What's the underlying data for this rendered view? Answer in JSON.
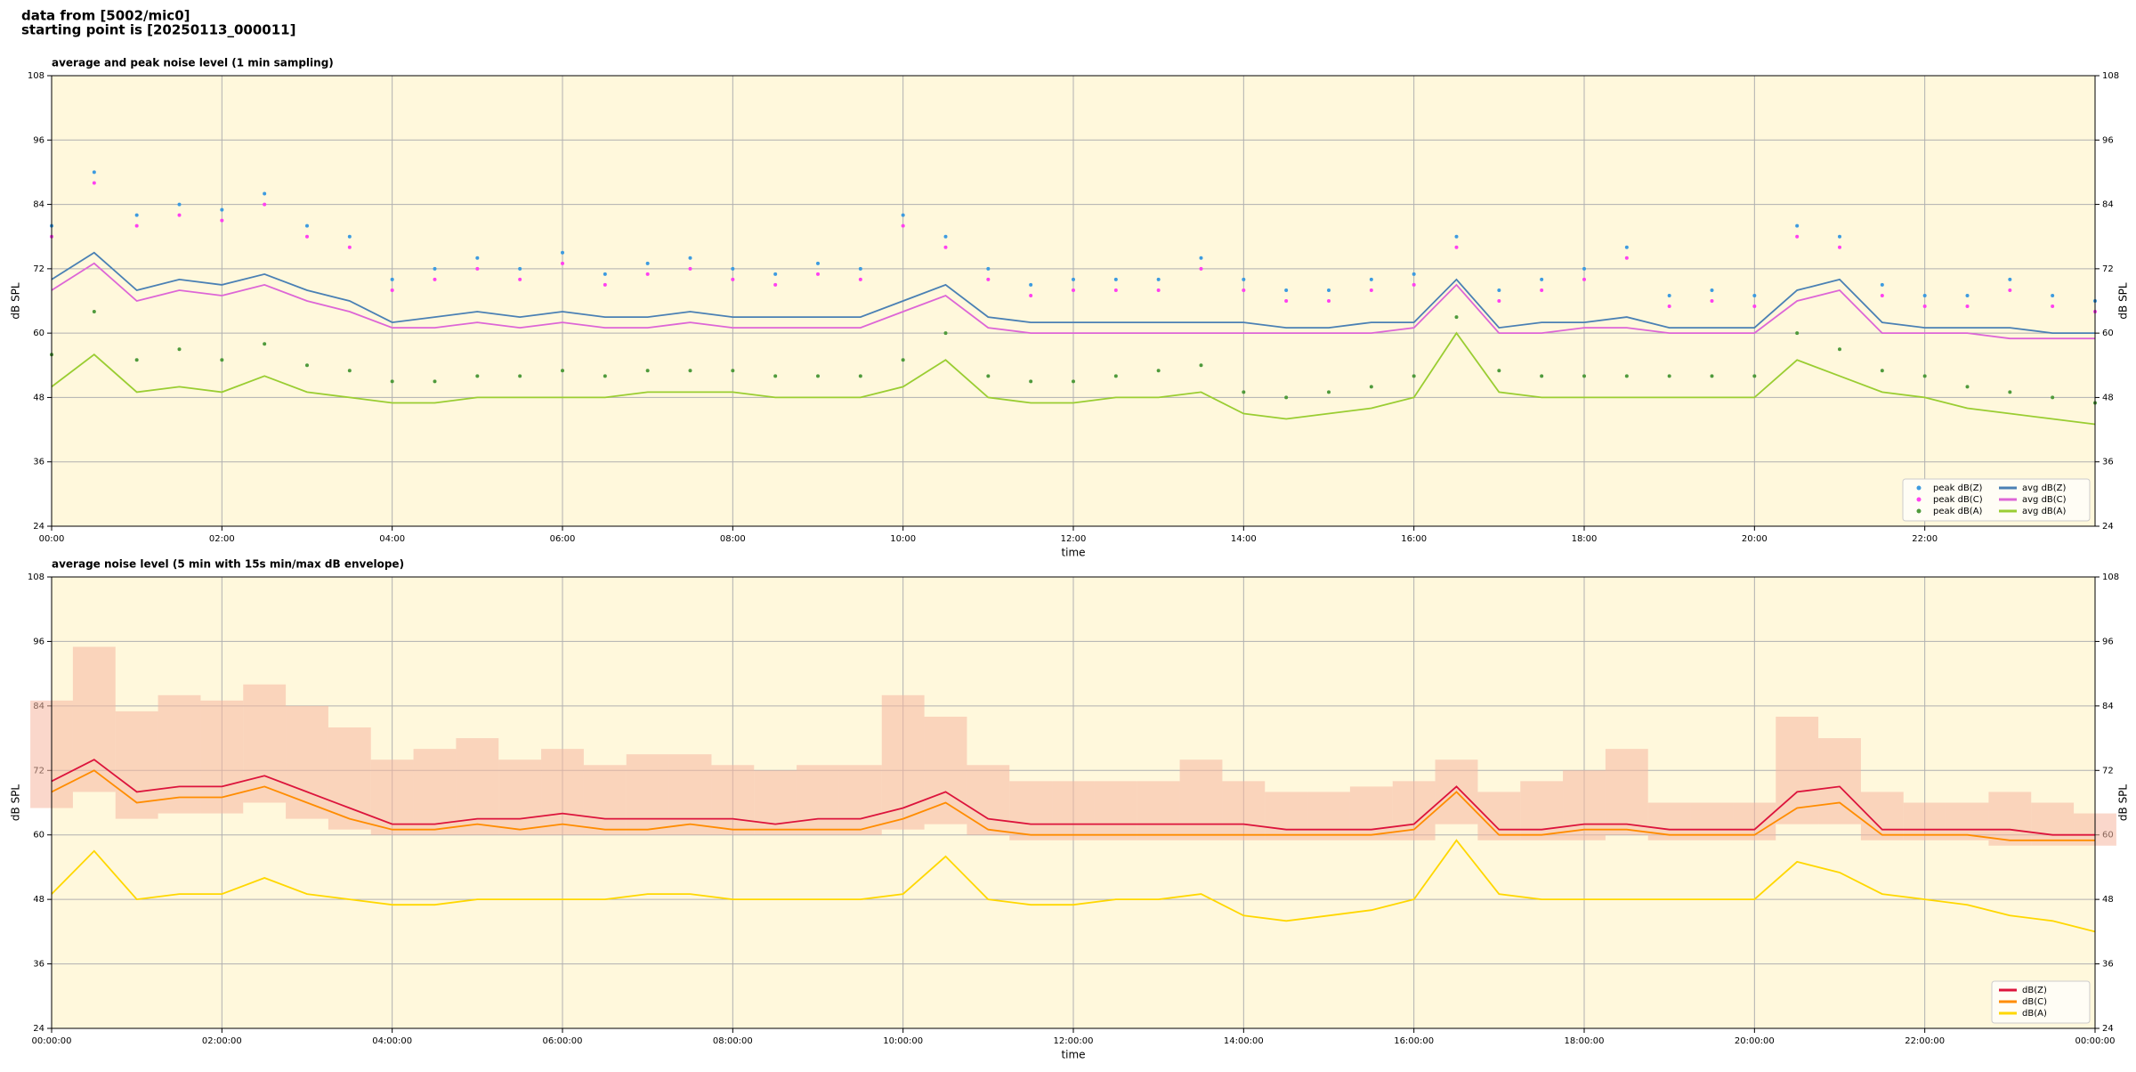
{
  "title_lines": [
    "data from [5002/mic0]",
    "starting point is [20250113_000011]"
  ],
  "chart_data": [
    {
      "type": "line",
      "title": "average and peak noise level (1 min sampling)",
      "x_label": "time",
      "y_label": "dB SPL",
      "y2_label": "dB SPL",
      "xlim": [
        0,
        24
      ],
      "xticks": [
        {
          "value": 0,
          "label": "00:00"
        },
        {
          "value": 2,
          "label": "02:00"
        },
        {
          "value": 4,
          "label": "04:00"
        },
        {
          "value": 6,
          "label": "06:00"
        },
        {
          "value": 8,
          "label": "08:00"
        },
        {
          "value": 10,
          "label": "10:00"
        },
        {
          "value": 12,
          "label": "12:00"
        },
        {
          "value": 14,
          "label": "14:00"
        },
        {
          "value": 16,
          "label": "16:00"
        },
        {
          "value": 18,
          "label": "18:00"
        },
        {
          "value": 20,
          "label": "20:00"
        },
        {
          "value": 22,
          "label": "22:00"
        }
      ],
      "ylim": [
        24,
        108
      ],
      "yticks": [
        24,
        36,
        48,
        60,
        72,
        84,
        96,
        108
      ],
      "y2lim": [
        24,
        108
      ],
      "y2ticks": [
        24,
        36,
        48,
        60,
        72,
        84,
        96,
        108
      ],
      "grid": true,
      "legend": "lower right",
      "legend_columns": 2,
      "x": [
        0,
        0.5,
        1,
        1.5,
        2,
        2.5,
        3,
        3.5,
        4,
        4.5,
        5,
        5.5,
        6,
        6.5,
        7,
        7.5,
        8,
        8.5,
        9,
        9.5,
        10,
        10.5,
        11,
        11.5,
        12,
        12.5,
        13,
        13.5,
        14,
        14.5,
        15,
        15.5,
        16,
        16.5,
        17,
        17.5,
        18,
        18.5,
        19,
        19.5,
        20,
        20.5,
        21,
        21.5,
        22,
        22.5,
        23,
        23.5,
        24
      ],
      "series": [
        {
          "name": "peak dB(Z)",
          "style": "markers",
          "color": "#3d9be0",
          "values": [
            80,
            90,
            82,
            84,
            83,
            86,
            80,
            78,
            70,
            72,
            74,
            72,
            75,
            71,
            73,
            74,
            72,
            71,
            73,
            72,
            82,
            78,
            72,
            69,
            70,
            70,
            70,
            74,
            70,
            68,
            68,
            70,
            71,
            78,
            68,
            70,
            72,
            76,
            67,
            68,
            67,
            80,
            78,
            69,
            67,
            67,
            70,
            67,
            66
          ]
        },
        {
          "name": "peak dB(C)",
          "style": "markers",
          "color": "#ff40f0",
          "values": [
            78,
            88,
            80,
            82,
            81,
            84,
            78,
            76,
            68,
            70,
            72,
            70,
            73,
            69,
            71,
            72,
            70,
            69,
            71,
            70,
            80,
            76,
            70,
            67,
            68,
            68,
            68,
            72,
            68,
            66,
            66,
            68,
            69,
            76,
            66,
            68,
            70,
            74,
            65,
            66,
            65,
            78,
            76,
            67,
            65,
            65,
            68,
            65,
            64
          ]
        },
        {
          "name": "peak dB(A)",
          "style": "markers",
          "color": "#4f9a3c",
          "values": [
            56,
            64,
            55,
            57,
            55,
            58,
            54,
            53,
            51,
            51,
            52,
            52,
            53,
            52,
            53,
            53,
            53,
            52,
            52,
            52,
            55,
            60,
            52,
            51,
            51,
            52,
            53,
            54,
            49,
            48,
            49,
            50,
            52,
            63,
            53,
            52,
            52,
            52,
            52,
            52,
            52,
            60,
            57,
            53,
            52,
            50,
            49,
            48,
            47
          ]
        },
        {
          "name": "avg dB(Z)",
          "style": "line",
          "color": "#4a80b4",
          "values": [
            70,
            75,
            68,
            70,
            69,
            71,
            68,
            66,
            62,
            63,
            64,
            63,
            64,
            63,
            63,
            64,
            63,
            63,
            63,
            63,
            66,
            69,
            63,
            62,
            62,
            62,
            62,
            62,
            62,
            61,
            61,
            62,
            62,
            70,
            61,
            62,
            62,
            63,
            61,
            61,
            61,
            68,
            70,
            62,
            61,
            61,
            61,
            60,
            60
          ]
        },
        {
          "name": "avg dB(C)",
          "style": "line",
          "color": "#dd66d6",
          "values": [
            68,
            73,
            66,
            68,
            67,
            69,
            66,
            64,
            61,
            61,
            62,
            61,
            62,
            61,
            61,
            62,
            61,
            61,
            61,
            61,
            64,
            67,
            61,
            60,
            60,
            60,
            60,
            60,
            60,
            60,
            60,
            60,
            61,
            69,
            60,
            60,
            61,
            61,
            60,
            60,
            60,
            66,
            68,
            60,
            60,
            60,
            59,
            59,
            59
          ]
        },
        {
          "name": "avg dB(A)",
          "style": "line",
          "color": "#9acd32",
          "values": [
            50,
            56,
            49,
            50,
            49,
            52,
            49,
            48,
            47,
            47,
            48,
            48,
            48,
            48,
            49,
            49,
            49,
            48,
            48,
            48,
            50,
            55,
            48,
            47,
            47,
            48,
            48,
            49,
            45,
            44,
            45,
            46,
            48,
            60,
            49,
            48,
            48,
            48,
            48,
            48,
            48,
            55,
            52,
            49,
            48,
            46,
            45,
            44,
            43
          ]
        }
      ]
    },
    {
      "type": "line",
      "title": "average noise level (5 min with 15s min/max dB envelope)",
      "x_label": "time",
      "y_label": "dB SPL",
      "y2_label": "dB SPL",
      "xlim": [
        0,
        24
      ],
      "xticks": [
        {
          "value": 0,
          "label": "00:00:00"
        },
        {
          "value": 2,
          "label": "02:00:00"
        },
        {
          "value": 4,
          "label": "04:00:00"
        },
        {
          "value": 6,
          "label": "06:00:00"
        },
        {
          "value": 8,
          "label": "08:00:00"
        },
        {
          "value": 10,
          "label": "10:00:00"
        },
        {
          "value": 12,
          "label": "12:00:00"
        },
        {
          "value": 14,
          "label": "14:00:00"
        },
        {
          "value": 16,
          "label": "16:00:00"
        },
        {
          "value": 18,
          "label": "18:00:00"
        },
        {
          "value": 20,
          "label": "20:00:00"
        },
        {
          "value": 22,
          "label": "22:00:00"
        },
        {
          "value": 24,
          "label": "00:00:00"
        }
      ],
      "ylim": [
        24,
        108
      ],
      "yticks": [
        24,
        36,
        48,
        60,
        72,
        84,
        96,
        108
      ],
      "y2lim": [
        24,
        108
      ],
      "y2ticks": [
        24,
        36,
        48,
        60,
        72,
        84,
        96,
        108
      ],
      "grid": true,
      "legend": "lower right",
      "legend_columns": 1,
      "x": [
        0,
        0.5,
        1,
        1.5,
        2,
        2.5,
        3,
        3.5,
        4,
        4.5,
        5,
        5.5,
        6,
        6.5,
        7,
        7.5,
        8,
        8.5,
        9,
        9.5,
        10,
        10.5,
        11,
        11.5,
        12,
        12.5,
        13,
        13.5,
        14,
        14.5,
        15,
        15.5,
        16,
        16.5,
        17,
        17.5,
        18,
        18.5,
        19,
        19.5,
        20,
        20.5,
        21,
        21.5,
        22,
        22.5,
        23,
        23.5,
        24
      ],
      "envelope": {
        "color": "#f6b7a0",
        "low": [
          65,
          68,
          63,
          64,
          64,
          66,
          63,
          61,
          60,
          60,
          60,
          60,
          60,
          60,
          60,
          60,
          60,
          60,
          60,
          60,
          61,
          62,
          60,
          59,
          59,
          59,
          59,
          59,
          59,
          59,
          59,
          59,
          59,
          62,
          59,
          59,
          59,
          60,
          59,
          59,
          59,
          62,
          62,
          59,
          59,
          59,
          58,
          58,
          58
        ],
        "high": [
          85,
          95,
          83,
          86,
          85,
          88,
          84,
          80,
          74,
          76,
          78,
          74,
          76,
          73,
          75,
          75,
          73,
          72,
          73,
          73,
          86,
          82,
          73,
          70,
          70,
          70,
          70,
          74,
          70,
          68,
          68,
          69,
          70,
          74,
          68,
          70,
          72,
          76,
          66,
          66,
          66,
          82,
          78,
          68,
          66,
          66,
          68,
          66,
          64
        ]
      },
      "series": [
        {
          "name": "dB(Z)",
          "style": "line",
          "color": "#dc143c",
          "values": [
            70,
            74,
            68,
            69,
            69,
            71,
            68,
            65,
            62,
            62,
            63,
            63,
            64,
            63,
            63,
            63,
            63,
            62,
            63,
            63,
            65,
            68,
            63,
            62,
            62,
            62,
            62,
            62,
            62,
            61,
            61,
            61,
            62,
            69,
            61,
            61,
            62,
            62,
            61,
            61,
            61,
            68,
            69,
            61,
            61,
            61,
            61,
            60,
            60
          ]
        },
        {
          "name": "dB(C)",
          "style": "line",
          "color": "#ff8c00",
          "values": [
            68,
            72,
            66,
            67,
            67,
            69,
            66,
            63,
            61,
            61,
            62,
            61,
            62,
            61,
            61,
            62,
            61,
            61,
            61,
            61,
            63,
            66,
            61,
            60,
            60,
            60,
            60,
            60,
            60,
            60,
            60,
            60,
            61,
            68,
            60,
            60,
            61,
            61,
            60,
            60,
            60,
            65,
            66,
            60,
            60,
            60,
            59,
            59,
            59
          ]
        },
        {
          "name": "dB(A)",
          "style": "line",
          "color": "#ffd700",
          "values": [
            49,
            57,
            48,
            49,
            49,
            52,
            49,
            48,
            47,
            47,
            48,
            48,
            48,
            48,
            49,
            49,
            48,
            48,
            48,
            48,
            49,
            56,
            48,
            47,
            47,
            48,
            48,
            49,
            45,
            44,
            45,
            46,
            48,
            59,
            49,
            48,
            48,
            48,
            48,
            48,
            48,
            55,
            53,
            49,
            48,
            47,
            45,
            44,
            42
          ]
        }
      ]
    }
  ]
}
